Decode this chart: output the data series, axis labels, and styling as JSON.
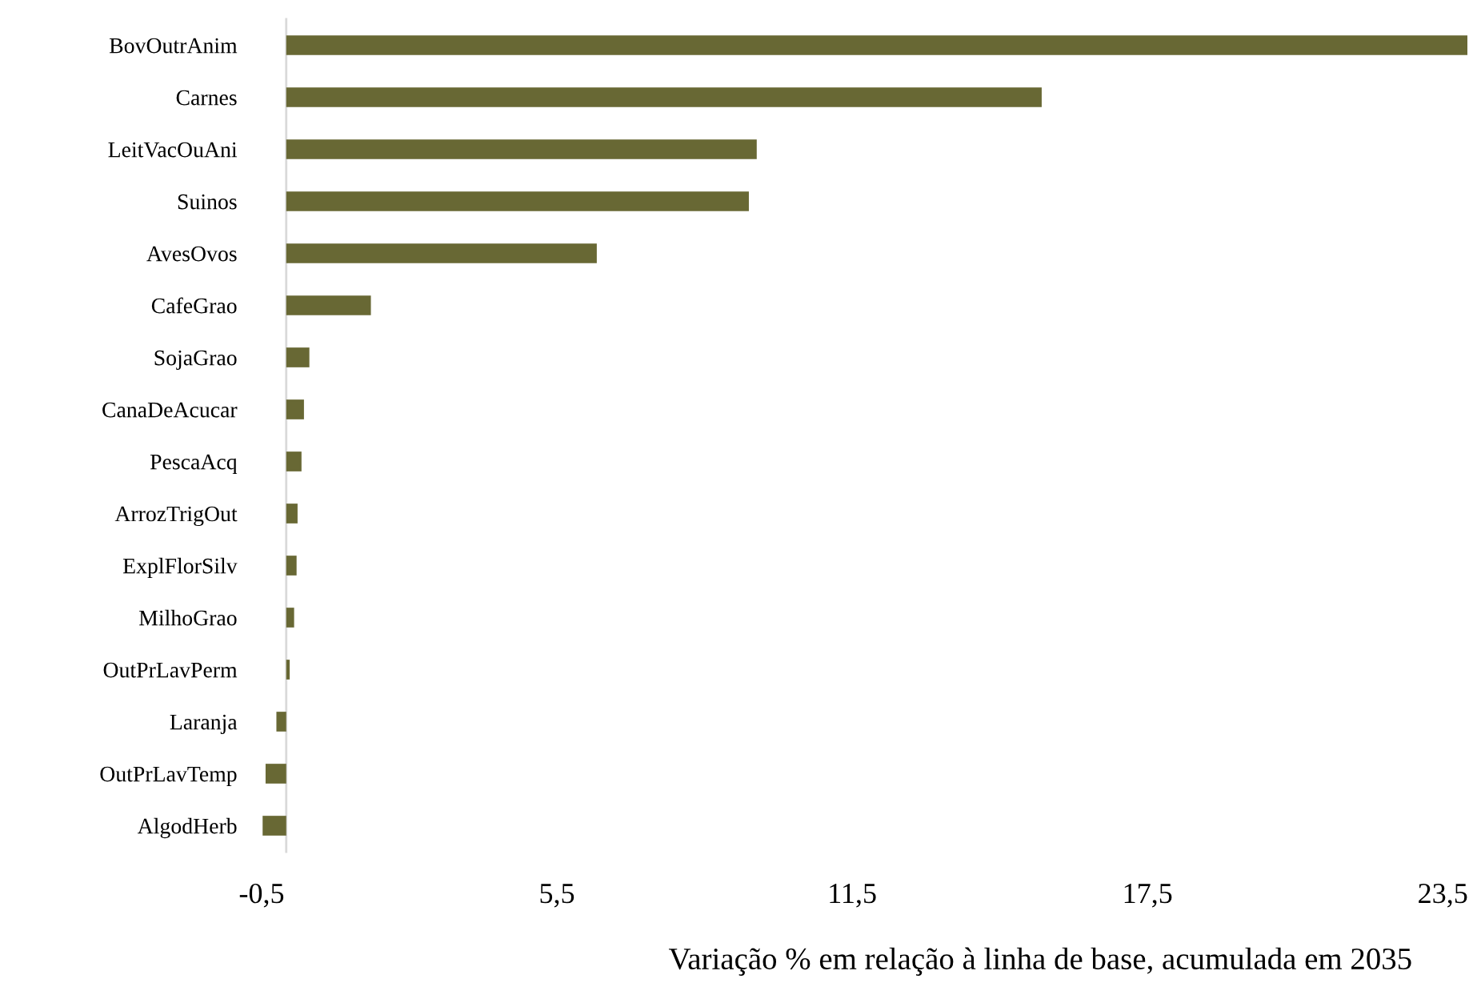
{
  "chart_data": {
    "type": "bar",
    "orientation": "horizontal",
    "categories": [
      "BovOutrAnim",
      "Carnes",
      "LeitVacOuAni",
      "Suinos",
      "AvesOvos",
      "CafeGrao",
      "SojaGrao",
      "CanaDeAcucar",
      "PescaAcq",
      "ArrozTrigOut",
      "ExplFlorSilv",
      "MilhoGrao",
      "OutPrLavPerm",
      "Laranja",
      "OutPrLavTemp",
      "AlgodHerb"
    ],
    "values": [
      24.0,
      15.35,
      9.56,
      9.4,
      6.31,
      1.72,
      0.47,
      0.36,
      0.31,
      0.23,
      0.21,
      0.16,
      0.07,
      -0.2,
      -0.42,
      -0.48
    ],
    "color": "#686834",
    "xlabel": "Variação % em relação à linha de base, acumulada em 2035",
    "xlim": [
      -0.5,
      24.0
    ],
    "xticks": [
      {
        "value": -0.5,
        "label": "-0,5"
      },
      {
        "value": 5.5,
        "label": "5,5"
      },
      {
        "value": 11.5,
        "label": "11,5"
      },
      {
        "value": 17.5,
        "label": "17,5"
      },
      {
        "value": 23.5,
        "label": "23,5"
      }
    ],
    "grid": false,
    "legend": false
  }
}
